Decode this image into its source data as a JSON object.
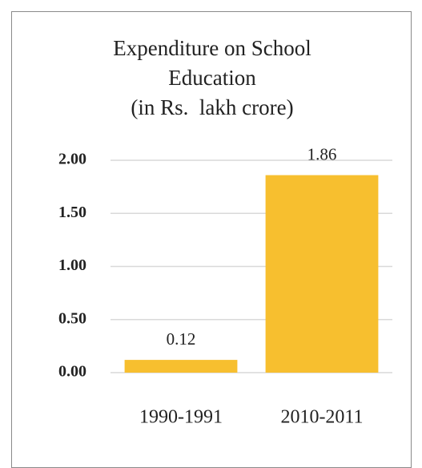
{
  "chart_data": {
    "type": "bar",
    "title": "Expenditure on School Education",
    "subtitle": "(in Rs.  lakh crore)",
    "categories": [
      "1990-1991",
      "2010-2011"
    ],
    "values": [
      0.12,
      1.86
    ],
    "color": "#f7bf2f",
    "ylim": [
      0,
      2
    ],
    "yticks": [
      {
        "value": 0,
        "label": "0.00"
      },
      {
        "value": 0.5,
        "label": "0.50"
      },
      {
        "value": 1,
        "label": "1.00"
      },
      {
        "value": 1.5,
        "label": "1.50"
      },
      {
        "value": 2,
        "label": "2.00"
      }
    ],
    "grid": true
  }
}
